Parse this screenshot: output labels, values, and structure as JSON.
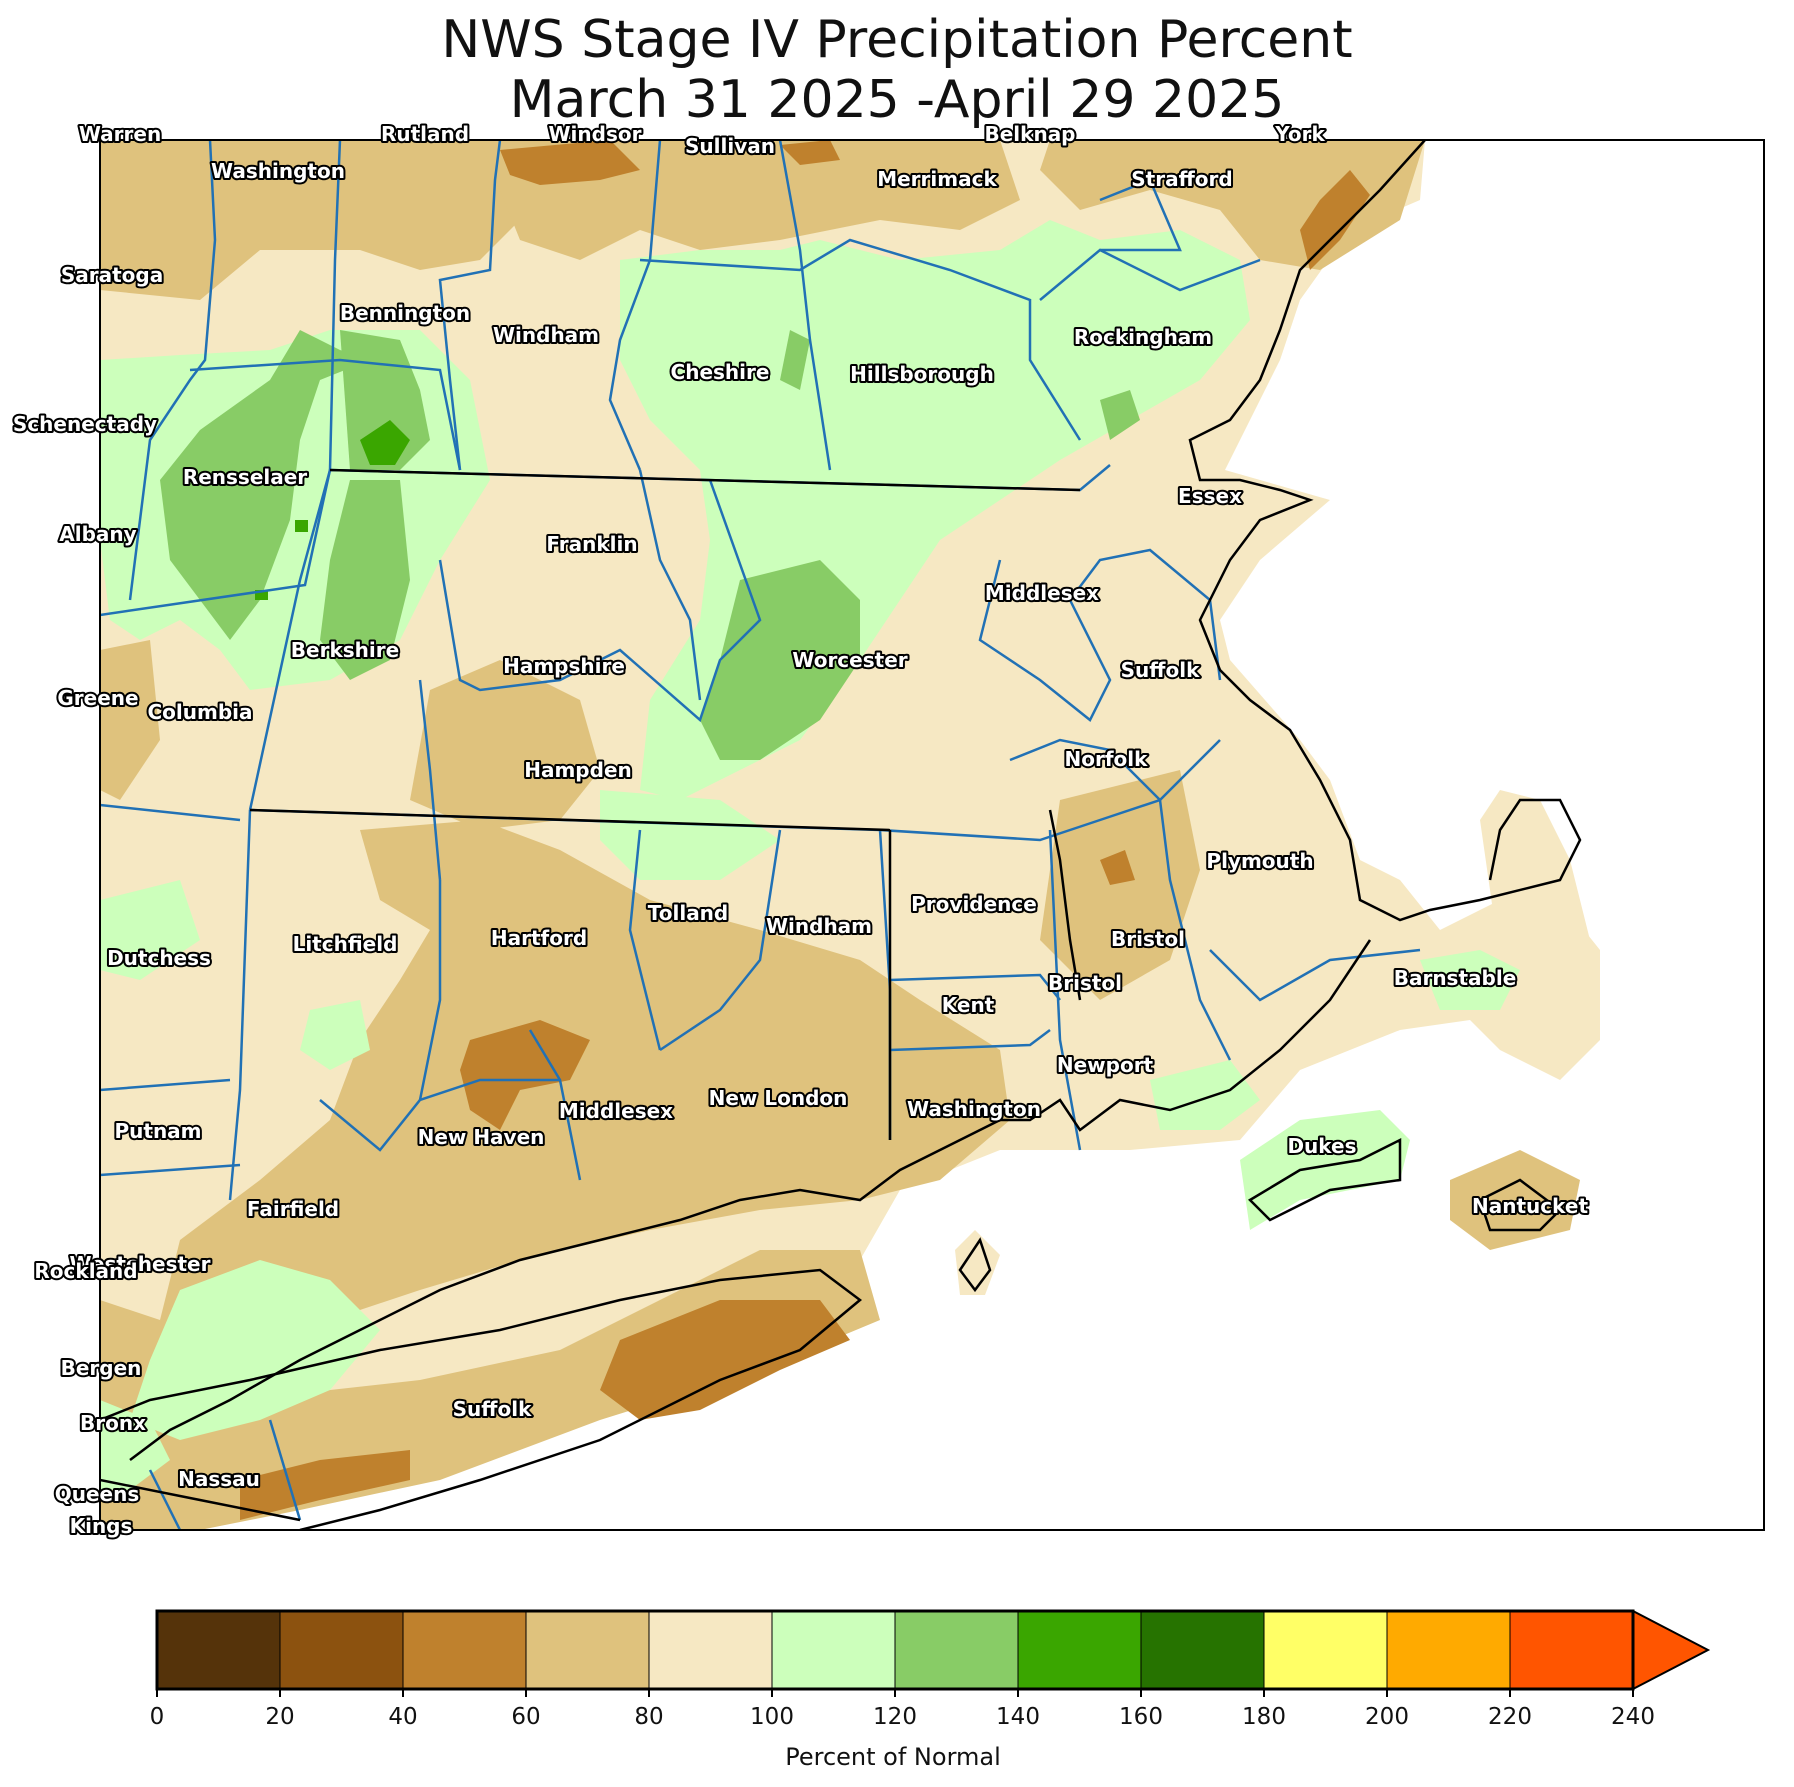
{
  "title": {
    "line1": "NWS Stage IV Precipitation Percent",
    "line2": "March 31 2025 -April 29 2025"
  },
  "legend": {
    "label": "Percent of Normal",
    "ticks": [
      "0",
      "20",
      "40",
      "60",
      "80",
      "100",
      "120",
      "140",
      "160",
      "180",
      "200",
      "220",
      "240"
    ],
    "colors": [
      "#55330a",
      "#8c520f",
      "#bf812d",
      "#dfc27d",
      "#f6e8c3",
      "#ccffbb",
      "#88cc66",
      "#3aa600",
      "#267300",
      "#ffff66",
      "#ffaa00",
      "#ff5500"
    ],
    "extend_color": "#ff5500"
  },
  "colors": {
    "county_line": "#2171b5",
    "state_line": "#000000",
    "frame": "#000000"
  },
  "counties": [
    {
      "name": "Warren"
    },
    {
      "name": "Rutland"
    },
    {
      "name": "Windsor"
    },
    {
      "name": "Sullivan"
    },
    {
      "name": "Belknap"
    },
    {
      "name": "York"
    },
    {
      "name": "Washington"
    },
    {
      "name": "Merrimack"
    },
    {
      "name": "Strafford"
    },
    {
      "name": "Saratoga"
    },
    {
      "name": "Bennington"
    },
    {
      "name": "Windham"
    },
    {
      "name": "Rockingham"
    },
    {
      "name": "Cheshire"
    },
    {
      "name": "Hillsborough"
    },
    {
      "name": "Schenectady"
    },
    {
      "name": "Rensselaer"
    },
    {
      "name": "Essex"
    },
    {
      "name": "Albany"
    },
    {
      "name": "Franklin"
    },
    {
      "name": "Middlesex"
    },
    {
      "name": "Berkshire"
    },
    {
      "name": "Worcester"
    },
    {
      "name": "Hampshire"
    },
    {
      "name": "Suffolk"
    },
    {
      "name": "Greene"
    },
    {
      "name": "Columbia"
    },
    {
      "name": "Norfolk"
    },
    {
      "name": "Hampden"
    },
    {
      "name": "Plymouth"
    },
    {
      "name": "Providence"
    },
    {
      "name": "Tolland"
    },
    {
      "name": "Dutchess"
    },
    {
      "name": "Litchfield"
    },
    {
      "name": "Hartford"
    },
    {
      "name": "Windham"
    },
    {
      "name": "Bristol"
    },
    {
      "name": "Bristol"
    },
    {
      "name": "Barnstable"
    },
    {
      "name": "Kent"
    },
    {
      "name": "Newport"
    },
    {
      "name": "New London"
    },
    {
      "name": "Middlesex"
    },
    {
      "name": "Washington"
    },
    {
      "name": "Putnam"
    },
    {
      "name": "New Haven"
    },
    {
      "name": "Dukes"
    },
    {
      "name": "Nantucket"
    },
    {
      "name": "Fairfield"
    },
    {
      "name": "Westchester"
    },
    {
      "name": "Rockland"
    },
    {
      "name": "Suffolk"
    },
    {
      "name": "Bergen"
    },
    {
      "name": "Bronx"
    },
    {
      "name": "Nassau"
    },
    {
      "name": "Queens"
    },
    {
      "name": "Kings"
    }
  ]
}
